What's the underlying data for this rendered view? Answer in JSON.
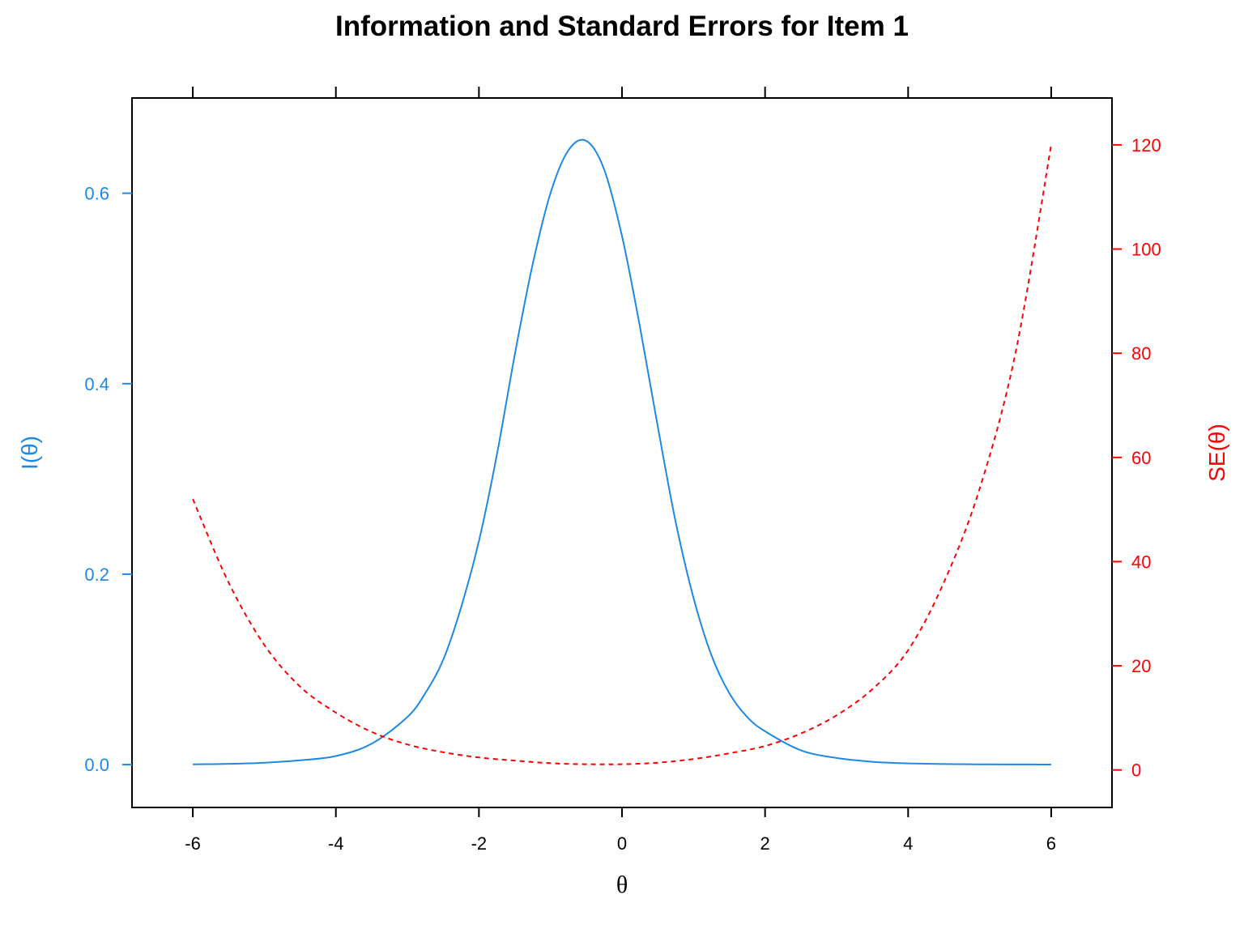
{
  "chart_data": {
    "type": "line",
    "title": "Information and Standard Errors for Item 1",
    "xlabel": "θ",
    "ylabel_left": "I(θ)",
    "ylabel_right": "SE(θ)",
    "xlim": [
      -6.85,
      6.85
    ],
    "ylim_left": [
      -0.045,
      0.7
    ],
    "ylim_right": [
      -7.2,
      129
    ],
    "x_ticks": [
      -6,
      -4,
      -2,
      0,
      2,
      4,
      6
    ],
    "y_left_ticks": [
      0.0,
      0.2,
      0.4,
      0.6
    ],
    "y_left_tick_labels": [
      "0.0",
      "0.2",
      "0.4",
      "0.6"
    ],
    "y_right_ticks": [
      0,
      20,
      40,
      60,
      80,
      100,
      120
    ],
    "grid": false,
    "legend": "none",
    "colors": {
      "info": "#1E88E5",
      "se": "#FF0000",
      "axis": "#000000"
    },
    "series": [
      {
        "axis": "left",
        "style": "solid",
        "x": [
          -6,
          -5.5,
          -5,
          -4.5,
          -4,
          -3.5,
          -3,
          -2.75,
          -2.5,
          -2.25,
          -2,
          -1.75,
          -1.5,
          -1.25,
          -1,
          -0.75,
          -0.5,
          -0.25,
          0,
          0.25,
          0.5,
          0.75,
          1,
          1.25,
          1.5,
          1.75,
          2,
          2.5,
          3,
          3.5,
          4,
          4.5,
          5,
          5.5,
          6
        ],
        "values": [
          0.0003,
          0.0008,
          0.002,
          0.0045,
          0.009,
          0.022,
          0.05,
          0.075,
          0.11,
          0.165,
          0.235,
          0.325,
          0.43,
          0.525,
          0.6,
          0.645,
          0.655,
          0.625,
          0.555,
          0.46,
          0.355,
          0.255,
          0.175,
          0.115,
          0.075,
          0.05,
          0.035,
          0.015,
          0.007,
          0.003,
          0.0013,
          0.0006,
          0.0003,
          0.0002,
          0.0001
        ]
      },
      {
        "axis": "right",
        "style": "dashed",
        "x": [
          -6,
          -5.5,
          -5,
          -4.5,
          -4,
          -3.5,
          -3,
          -2.5,
          -2,
          -1.5,
          -1,
          -0.5,
          0,
          0.5,
          1,
          1.5,
          2,
          2.5,
          3,
          3.5,
          4,
          4.5,
          5,
          5.5,
          6
        ],
        "values": [
          52,
          36,
          24,
          16,
          11,
          7.3,
          4.9,
          3.4,
          2.4,
          1.8,
          1.3,
          1.1,
          1.1,
          1.4,
          2.1,
          3.2,
          4.6,
          7.0,
          10.5,
          15.5,
          23,
          36,
          54,
          80,
          120
        ]
      }
    ]
  }
}
